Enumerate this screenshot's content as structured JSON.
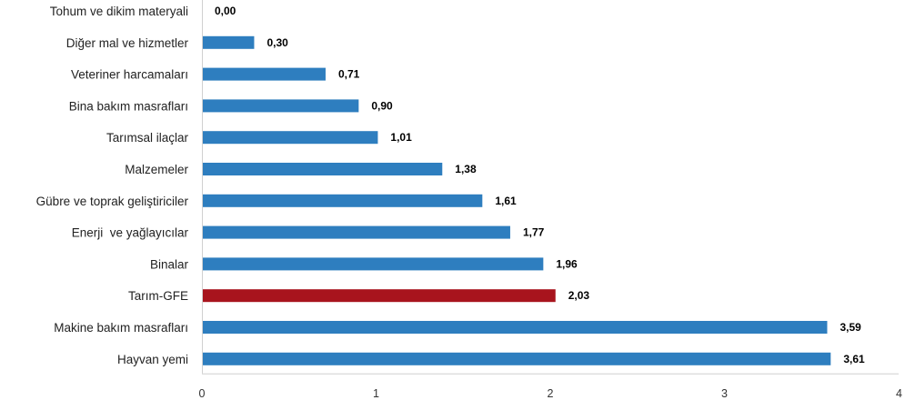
{
  "chart_data": {
    "type": "bar",
    "orientation": "horizontal",
    "categories": [
      "Tohum ve dikim materyali",
      "Diğer mal ve hizmetler",
      "Veteriner harcamaları",
      "Bina bakım masrafları",
      "Tarımsal ilaçlar",
      "Malzemeler",
      "Gübre ve toprak geliştiriciler",
      "Enerji  ve yağlayıcılar",
      "Binalar",
      "Tarım-GFE",
      "Makine bakım masrafları",
      "Hayvan yemi"
    ],
    "values": [
      0.0,
      0.3,
      0.71,
      0.9,
      1.01,
      1.38,
      1.61,
      1.77,
      1.96,
      2.03,
      3.59,
      3.61
    ],
    "value_labels": [
      "0,00",
      "0,30",
      "0,71",
      "0,90",
      "1,01",
      "1,38",
      "1,61",
      "1,77",
      "1,96",
      "2,03",
      "3,59",
      "3,61"
    ],
    "xlim": [
      0,
      4
    ],
    "xticks": [
      0,
      1,
      2,
      3,
      4
    ],
    "xtick_labels": [
      "0",
      "1",
      "2",
      "3",
      "4"
    ],
    "title": "",
    "xlabel": "",
    "ylabel": "",
    "grid": false,
    "legend": "none",
    "colors": {
      "bar": "#2e7ebf",
      "highlight_bar": "#a8141d",
      "axis": "#d0d0d0"
    },
    "highlight_category": "Tarım-GFE"
  }
}
